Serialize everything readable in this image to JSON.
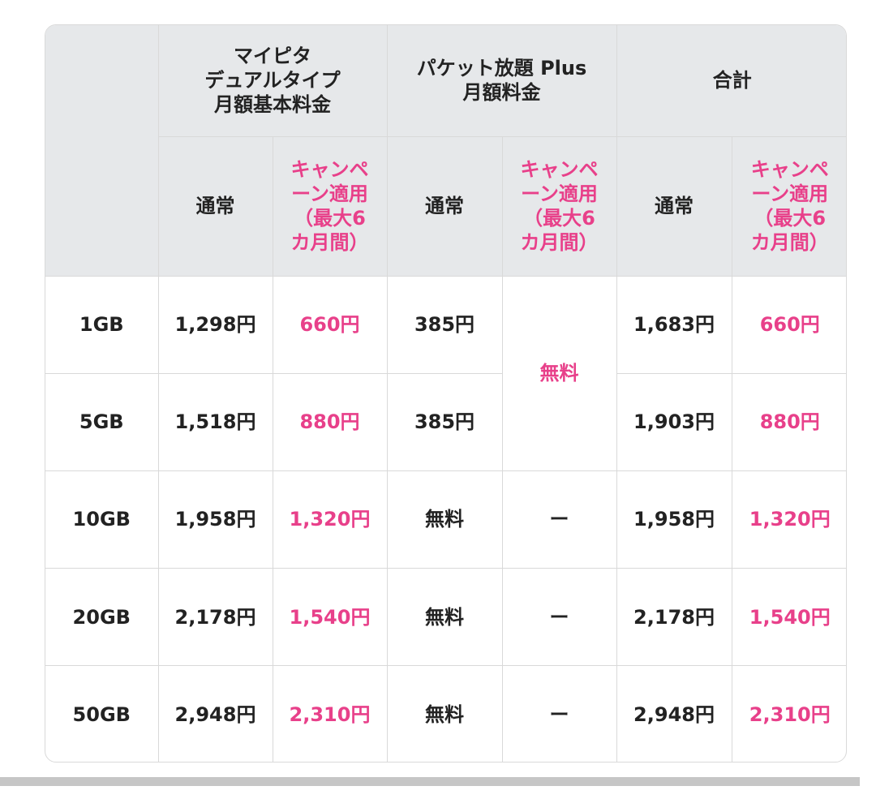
{
  "header": {
    "corner": "",
    "col_mypita": "マイピタ\nデュアルタイプ\n月額基本料金",
    "col_packet": "パケット放題 Plus\n月額料金",
    "col_total": "合計",
    "normal": "通常",
    "campaign": "キャンペ\nーン適用\n（最大6\nカ月間）"
  },
  "rows": [
    {
      "plan": "1GB",
      "mypita_normal": "1,298円",
      "mypita_campaign": "660円",
      "packet_normal": "385円",
      "total_normal": "1,683円",
      "total_campaign": "660円"
    },
    {
      "plan": "5GB",
      "mypita_normal": "1,518円",
      "mypita_campaign": "880円",
      "packet_normal": "385円",
      "total_normal": "1,903円",
      "total_campaign": "880円"
    },
    {
      "plan": "10GB",
      "mypita_normal": "1,958円",
      "mypita_campaign": "1,320円",
      "packet_normal": "無料",
      "packet_campaign": "ー",
      "total_normal": "1,958円",
      "total_campaign": "1,320円"
    },
    {
      "plan": "20GB",
      "mypita_normal": "2,178円",
      "mypita_campaign": "1,540円",
      "packet_normal": "無料",
      "packet_campaign": "ー",
      "total_normal": "2,178円",
      "total_campaign": "1,540円"
    },
    {
      "plan": "50GB",
      "mypita_normal": "2,948円",
      "mypita_campaign": "2,310円",
      "packet_normal": "無料",
      "packet_campaign": "ー",
      "total_normal": "2,948円",
      "total_campaign": "2,310円"
    }
  ],
  "packet_campaign_merged": "無料",
  "colors": {
    "accent": "#e8408a",
    "header_bg": "#e6e8ea",
    "border": "#d9d9d9"
  }
}
